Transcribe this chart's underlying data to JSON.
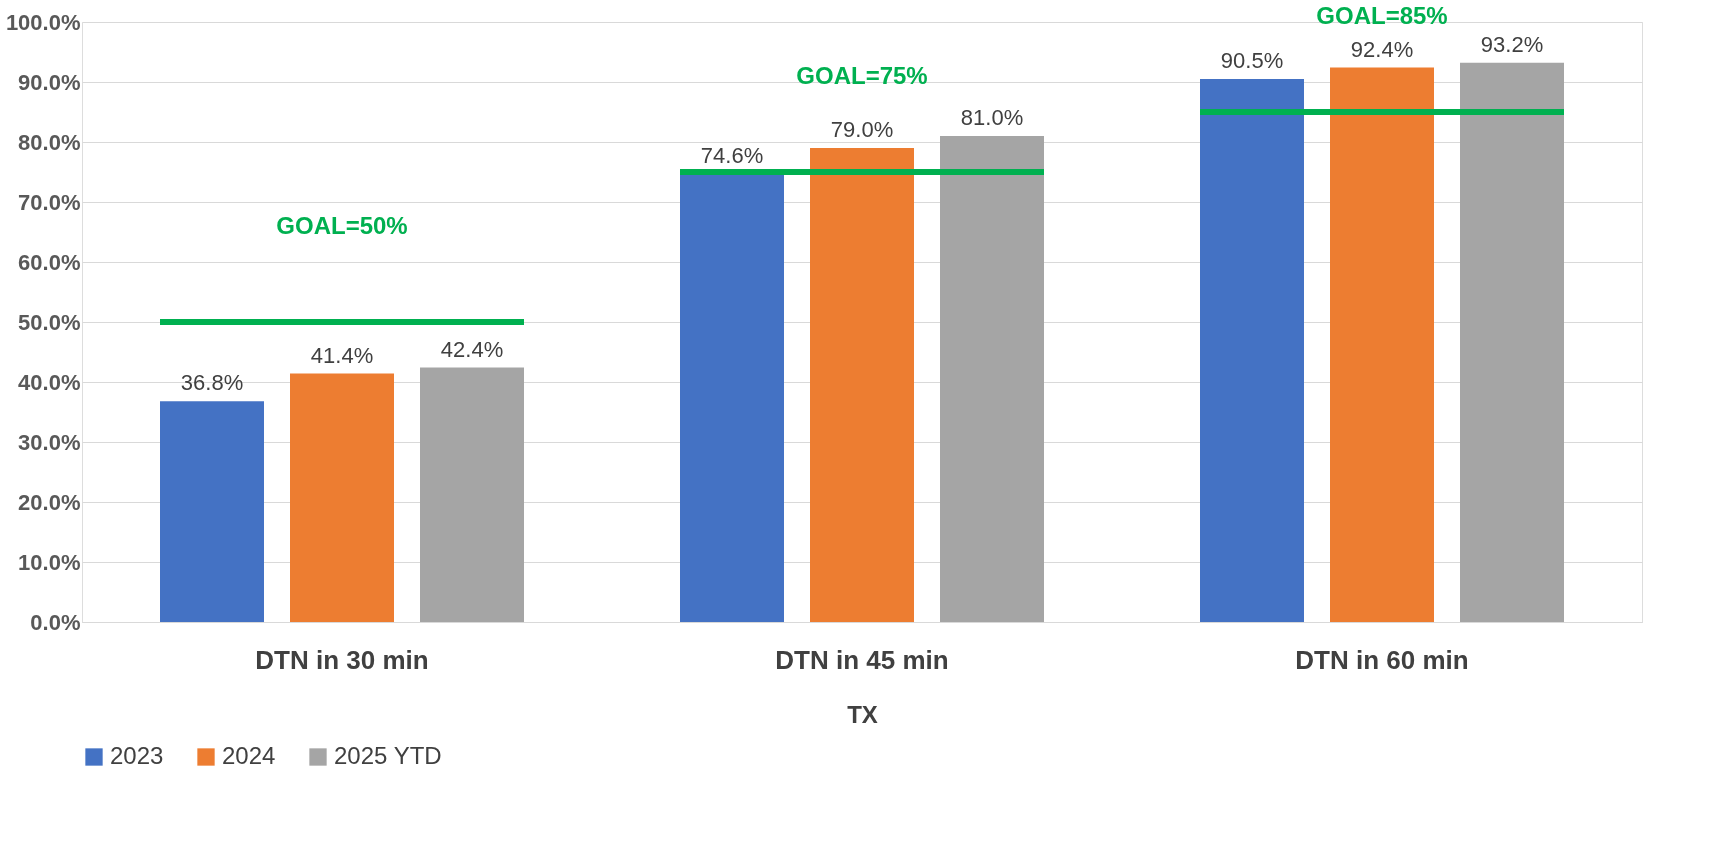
{
  "chart_data": {
    "type": "bar",
    "xlabel": "TX",
    "categories": [
      "DTN in 30 min",
      "DTN in 45 min",
      "DTN in 60 min"
    ],
    "series": [
      {
        "name": "2023",
        "color": "#4472c4",
        "values": [
          36.8,
          74.6,
          90.5
        ],
        "value_labels": [
          "36.8%",
          "74.6%",
          "90.5%"
        ]
      },
      {
        "name": "2024",
        "color": "#ed7d31",
        "values": [
          41.4,
          79.0,
          92.4
        ],
        "value_labels": [
          "41.4%",
          "79.0%",
          "92.4%"
        ]
      },
      {
        "name": "2025 YTD",
        "color": "#a5a5a5",
        "values": [
          42.4,
          81.0,
          93.2
        ],
        "value_labels": [
          "42.4%",
          "81.0%",
          "93.2%"
        ]
      }
    ],
    "ylim": [
      0,
      100
    ],
    "yticks": [
      {
        "value": 0,
        "label": "0.0%"
      },
      {
        "value": 10,
        "label": "10.0%"
      },
      {
        "value": 20,
        "label": "20.0%"
      },
      {
        "value": 30,
        "label": "30.0%"
      },
      {
        "value": 40,
        "label": "40.0%"
      },
      {
        "value": 50,
        "label": "50.0%"
      },
      {
        "value": 60,
        "label": "60.0%"
      },
      {
        "value": 70,
        "label": "70.0%"
      },
      {
        "value": 80,
        "label": "80.0%"
      },
      {
        "value": 90,
        "label": "90.0%"
      },
      {
        "value": 100,
        "label": "100.0%"
      }
    ],
    "ref_lines": [
      {
        "axis": "y",
        "value": 50,
        "label": "GOAL=50%",
        "color": "#00b050"
      },
      {
        "axis": "y",
        "value": 75,
        "label": "GOAL=75%",
        "color": "#00b050"
      },
      {
        "axis": "y",
        "value": 85,
        "label": "GOAL=85%",
        "color": "#00b050"
      }
    ],
    "grid": "y",
    "legend": "bottom"
  }
}
